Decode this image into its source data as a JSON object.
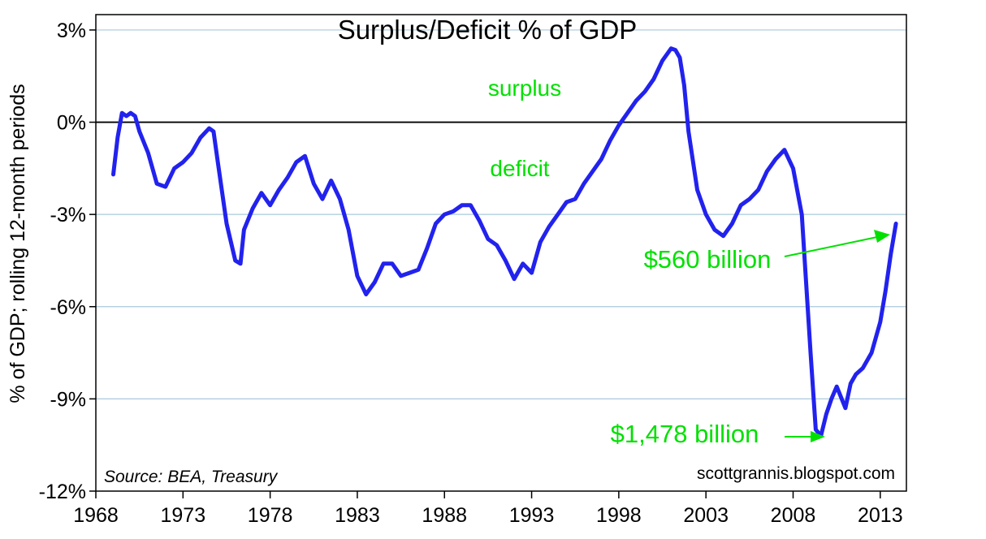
{
  "chart_data": {
    "type": "line",
    "title": "Surplus/Deficit % of GDP",
    "xlabel": "",
    "ylabel": "% of GDP; rolling 12-month periods",
    "xlim": [
      1968,
      2014.5
    ],
    "ylim": [
      -12,
      3.5
    ],
    "x_ticks": [
      "1968",
      "1973",
      "1978",
      "1983",
      "1988",
      "1993",
      "1998",
      "2003",
      "2008",
      "2013"
    ],
    "x_tick_values": [
      1968,
      1973,
      1978,
      1983,
      1988,
      1993,
      1998,
      2003,
      2008,
      2013
    ],
    "y_ticks": [
      "3%",
      "0%",
      "-3%",
      "-6%",
      "-9%",
      "-12%"
    ],
    "y_tick_values": [
      3,
      0,
      -3,
      -6,
      -9,
      -12
    ],
    "grid": true,
    "series": [
      {
        "name": "Surplus/Deficit % of GDP",
        "color": "#2222ee",
        "x": [
          1969.0,
          1969.25,
          1969.5,
          1969.75,
          1970.0,
          1970.25,
          1970.5,
          1971.0,
          1971.5,
          1972.0,
          1972.5,
          1973.0,
          1973.5,
          1974.0,
          1974.5,
          1974.75,
          1975.0,
          1975.5,
          1976.0,
          1976.3,
          1976.5,
          1977.0,
          1977.5,
          1978.0,
          1978.5,
          1979.0,
          1979.5,
          1980.0,
          1980.5,
          1981.0,
          1981.5,
          1982.0,
          1982.5,
          1983.0,
          1983.5,
          1984.0,
          1984.5,
          1985.0,
          1985.5,
          1986.0,
          1986.5,
          1987.0,
          1987.5,
          1988.0,
          1988.5,
          1989.0,
          1989.5,
          1990.0,
          1990.5,
          1991.0,
          1991.5,
          1992.0,
          1992.5,
          1993.0,
          1993.5,
          1994.0,
          1994.5,
          1995.0,
          1995.5,
          1996.0,
          1996.5,
          1997.0,
          1997.5,
          1998.0,
          1998.5,
          1999.0,
          1999.5,
          2000.0,
          2000.5,
          2001.0,
          2001.25,
          2001.5,
          2001.75,
          2002.0,
          2002.5,
          2003.0,
          2003.5,
          2004.0,
          2004.5,
          2005.0,
          2005.5,
          2006.0,
          2006.5,
          2007.0,
          2007.5,
          2008.0,
          2008.5,
          2009.0,
          2009.3,
          2009.6,
          2009.9,
          2010.2,
          2010.5,
          2011.0,
          2011.3,
          2011.6,
          2012.0,
          2012.5,
          2013.0,
          2013.3,
          2013.6,
          2013.9
        ],
        "y": [
          -1.7,
          -0.5,
          0.3,
          0.2,
          0.3,
          0.2,
          -0.3,
          -1.0,
          -2.0,
          -2.1,
          -1.5,
          -1.3,
          -1.0,
          -0.5,
          -0.2,
          -0.3,
          -1.3,
          -3.3,
          -4.5,
          -4.6,
          -3.5,
          -2.8,
          -2.3,
          -2.7,
          -2.2,
          -1.8,
          -1.3,
          -1.1,
          -2.0,
          -2.5,
          -1.9,
          -2.5,
          -3.5,
          -5.0,
          -5.6,
          -5.2,
          -4.6,
          -4.6,
          -5.0,
          -4.9,
          -4.8,
          -4.1,
          -3.3,
          -3.0,
          -2.9,
          -2.7,
          -2.7,
          -3.2,
          -3.8,
          -4.0,
          -4.5,
          -5.1,
          -4.6,
          -4.9,
          -3.9,
          -3.4,
          -3.0,
          -2.6,
          -2.5,
          -2.0,
          -1.6,
          -1.2,
          -0.6,
          -0.1,
          0.3,
          0.7,
          1.0,
          1.4,
          2.0,
          2.4,
          2.35,
          2.1,
          1.2,
          -0.3,
          -2.2,
          -3.0,
          -3.5,
          -3.7,
          -3.3,
          -2.7,
          -2.5,
          -2.2,
          -1.6,
          -1.2,
          -0.9,
          -1.5,
          -3.0,
          -7.5,
          -10.0,
          -10.2,
          -9.5,
          -9.0,
          -8.6,
          -9.3,
          -8.5,
          -8.2,
          -8.0,
          -7.5,
          -6.5,
          -5.5,
          -4.3,
          -3.3
        ]
      }
    ],
    "reference_line": {
      "y": 0,
      "color": "#000000"
    },
    "annotations": {
      "surplus": "surplus",
      "deficit": "deficit",
      "latest": "$560 billion",
      "trough": "$1,478 billion",
      "source": "Source:  BEA, Treasury",
      "credit": "scottgrannis.blogspot.com",
      "label_color": "#00e000"
    }
  }
}
